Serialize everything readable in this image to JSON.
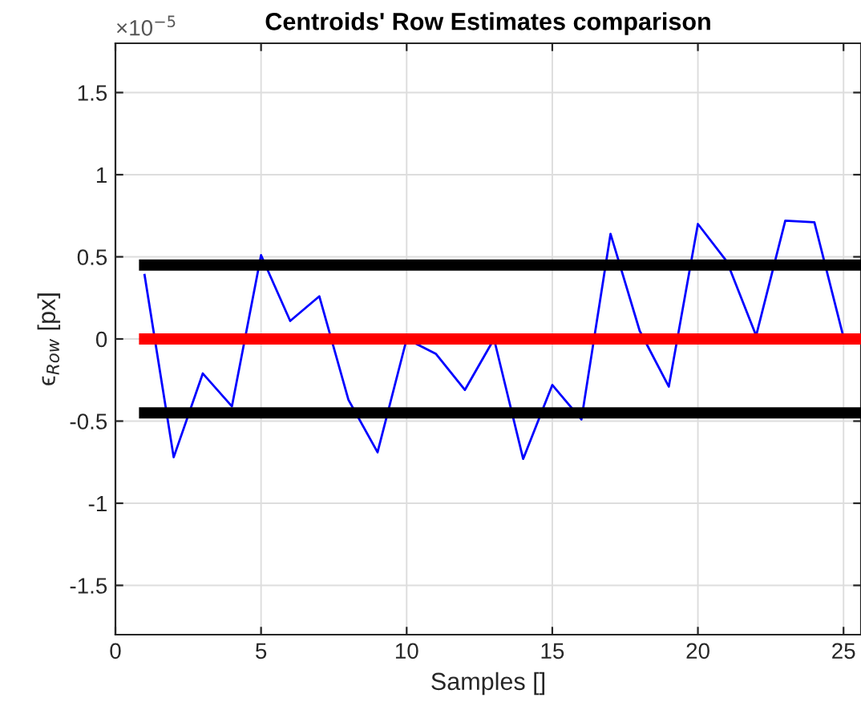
{
  "chart_data": {
    "type": "line",
    "title": "Centroids' Row Estimates comparison",
    "xlabel": "Samples []",
    "ylabel": "ϵ$_{Row}$ [px]",
    "annotations": [
      "×10$^{−5}$"
    ],
    "xlim": [
      0,
      25.6
    ],
    "xticks": [
      0,
      5,
      10,
      15,
      20,
      25
    ],
    "ylim": [
      -1.8,
      1.8
    ],
    "yticks": [
      -1.5,
      -1,
      -0.5,
      0,
      0.5,
      1,
      1.5
    ],
    "grid": true,
    "series": [
      {
        "color": "#0000ff",
        "x": [
          1,
          2,
          3,
          4,
          5,
          6,
          7,
          8,
          9,
          10,
          11,
          12,
          13,
          14,
          15,
          16,
          17,
          18,
          19,
          20,
          21,
          22,
          23,
          24,
          25
        ],
        "values": [
          0.39,
          -0.72,
          -0.21,
          -0.41,
          0.51,
          0.11,
          0.26,
          -0.37,
          -0.69,
          0.0,
          -0.09,
          -0.31,
          0.0,
          -0.73,
          -0.28,
          -0.49,
          0.64,
          0.05,
          -0.29,
          0.7,
          0.47,
          0.02,
          0.72,
          0.71,
          0.01
        ]
      },
      {
        "color": "#000000",
        "x": [
          1,
          25.6
        ],
        "values": [
          0.45,
          0.45
        ]
      },
      {
        "color": "#ff0000",
        "x": [
          1,
          25.6
        ],
        "values": [
          0,
          0
        ]
      },
      {
        "color": "#000000",
        "x": [
          1,
          25.6
        ],
        "values": [
          -0.45,
          -0.45
        ]
      }
    ]
  }
}
